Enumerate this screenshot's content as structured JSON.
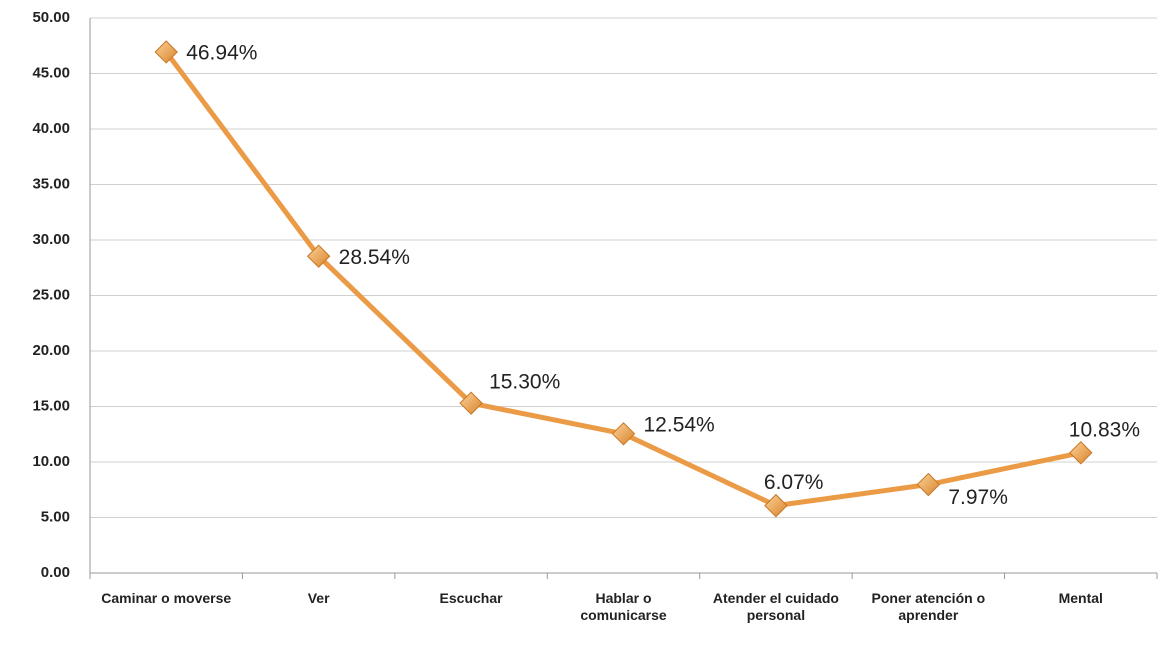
{
  "chart_data": {
    "type": "line",
    "categories": [
      "Caminar o moverse",
      "Ver",
      "Escuchar",
      "Hablar o comunicarse",
      "Atender el cuidado personal",
      "Poner atención o aprender",
      "Mental"
    ],
    "values": [
      46.94,
      28.54,
      15.3,
      12.54,
      6.07,
      7.97,
      10.83
    ],
    "value_labels": [
      "46.94%",
      "28.54%",
      "15.30%",
      "12.54%",
      "6.07%",
      "7.97%",
      "10.83%"
    ],
    "color": "#eb9a45",
    "ylim": [
      0,
      50
    ],
    "yticks": [
      {
        "value": 0,
        "label": "0.00"
      },
      {
        "value": 5,
        "label": "5.00"
      },
      {
        "value": 10,
        "label": "10.00"
      },
      {
        "value": 15,
        "label": "15.00"
      },
      {
        "value": 20,
        "label": "20.00"
      },
      {
        "value": 25,
        "label": "25.00"
      },
      {
        "value": 30,
        "label": "30.00"
      },
      {
        "value": 35,
        "label": "35.00"
      },
      {
        "value": 40,
        "label": "40.00"
      },
      {
        "value": 45,
        "label": "45.00"
      },
      {
        "value": 50,
        "label": "50.00"
      }
    ],
    "grid": true
  }
}
